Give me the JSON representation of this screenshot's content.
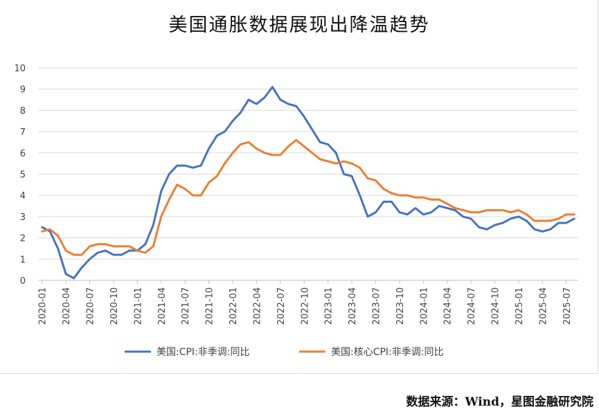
{
  "title": "美国通胀数据展现出降温趋势",
  "source": "数据来源：Wind，星图金融研究院",
  "chart_data": {
    "type": "line",
    "title": "美国通胀数据展现出降温趋势",
    "xlabel": "",
    "ylabel": "",
    "ylim": [
      0,
      10
    ],
    "yticks": [
      0,
      1,
      2,
      3,
      4,
      5,
      6,
      7,
      8,
      9,
      10
    ],
    "grid": true,
    "legend_position": "bottom",
    "x_tick_labels": [
      "2020-01",
      "2020-04",
      "2020-07",
      "2020-10",
      "2021-01",
      "2021-04",
      "2021-07",
      "2021-10",
      "2022-01",
      "2022-04",
      "2022-07",
      "2022-10",
      "2023-01",
      "2023-04",
      "2023-07",
      "2023-10",
      "2024-01",
      "2024-04",
      "2024-07",
      "2024-10",
      "2025-01",
      "2025-04",
      "2025-07"
    ],
    "x": [
      "2020-01",
      "2020-02",
      "2020-03",
      "2020-04",
      "2020-05",
      "2020-06",
      "2020-07",
      "2020-08",
      "2020-09",
      "2020-10",
      "2020-11",
      "2020-12",
      "2021-01",
      "2021-02",
      "2021-03",
      "2021-04",
      "2021-05",
      "2021-06",
      "2021-07",
      "2021-08",
      "2021-09",
      "2021-10",
      "2021-11",
      "2021-12",
      "2022-01",
      "2022-02",
      "2022-03",
      "2022-04",
      "2022-05",
      "2022-06",
      "2022-07",
      "2022-08",
      "2022-09",
      "2022-10",
      "2022-11",
      "2022-12",
      "2023-01",
      "2023-02",
      "2023-03",
      "2023-04",
      "2023-05",
      "2023-06",
      "2023-07",
      "2023-08",
      "2023-09",
      "2023-10",
      "2023-11",
      "2023-12",
      "2024-01",
      "2024-02",
      "2024-03",
      "2024-04",
      "2024-05",
      "2024-06",
      "2024-07",
      "2024-08",
      "2024-09",
      "2024-10",
      "2024-11",
      "2024-12",
      "2025-01",
      "2025-02",
      "2025-03",
      "2025-04",
      "2025-05",
      "2025-06",
      "2025-07",
      "2025-08"
    ],
    "series": [
      {
        "name": "美国:CPI:非季调:同比",
        "color": "#4472c4",
        "values": [
          2.5,
          2.3,
          1.5,
          0.3,
          0.1,
          0.6,
          1.0,
          1.3,
          1.4,
          1.2,
          1.2,
          1.4,
          1.4,
          1.7,
          2.6,
          4.2,
          5.0,
          5.4,
          5.4,
          5.3,
          5.4,
          6.2,
          6.8,
          7.0,
          7.5,
          7.9,
          8.5,
          8.3,
          8.6,
          9.1,
          8.5,
          8.3,
          8.2,
          7.7,
          7.1,
          6.5,
          6.4,
          6.0,
          5.0,
          4.9,
          4.0,
          3.0,
          3.2,
          3.7,
          3.7,
          3.2,
          3.1,
          3.4,
          3.1,
          3.2,
          3.5,
          3.4,
          3.3,
          3.0,
          2.9,
          2.5,
          2.4,
          2.6,
          2.7,
          2.9,
          3.0,
          2.8,
          2.4,
          2.3,
          2.4,
          2.7,
          2.7,
          2.9
        ]
      },
      {
        "name": "美国:核心CPI:非季调:同比",
        "color": "#ed7d31",
        "values": [
          2.3,
          2.4,
          2.1,
          1.4,
          1.2,
          1.2,
          1.6,
          1.7,
          1.7,
          1.6,
          1.6,
          1.6,
          1.4,
          1.3,
          1.6,
          3.0,
          3.8,
          4.5,
          4.3,
          4.0,
          4.0,
          4.6,
          4.9,
          5.5,
          6.0,
          6.4,
          6.5,
          6.2,
          6.0,
          5.9,
          5.9,
          6.3,
          6.6,
          6.3,
          6.0,
          5.7,
          5.6,
          5.5,
          5.6,
          5.5,
          5.3,
          4.8,
          4.7,
          4.3,
          4.1,
          4.0,
          4.0,
          3.9,
          3.9,
          3.8,
          3.8,
          3.6,
          3.4,
          3.3,
          3.2,
          3.2,
          3.3,
          3.3,
          3.3,
          3.2,
          3.3,
          3.1,
          2.8,
          2.8,
          2.8,
          2.9,
          3.1,
          3.1
        ]
      }
    ]
  }
}
